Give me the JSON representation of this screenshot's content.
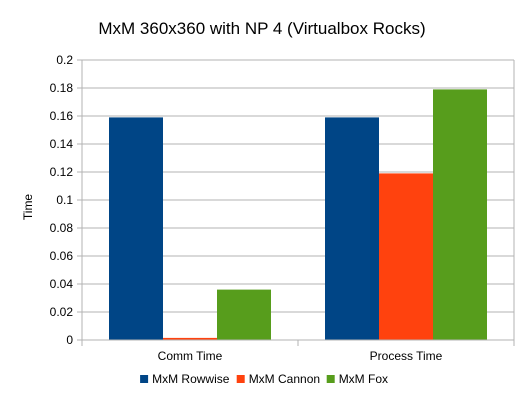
{
  "chart_data": {
    "type": "bar",
    "title": "MxM 360x360 with NP 4 (Virtualbox Rocks)",
    "xlabel": "",
    "ylabel": "Time",
    "ylim": [
      0,
      0.2
    ],
    "yticks": [
      0,
      0.02,
      0.04,
      0.06,
      0.08,
      0.1,
      0.12,
      0.14,
      0.16,
      0.18,
      0.2
    ],
    "ytick_labels": [
      "0",
      "0.02",
      "0.04",
      "0.06",
      "0.08",
      "0.1",
      "0.12",
      "0.14",
      "0.16",
      "0.18",
      "0.2"
    ],
    "categories": [
      "Comm Time",
      "Process Time"
    ],
    "series": [
      {
        "name": "MxM Rowwise",
        "color": "#004586",
        "values": [
          0.159,
          0.159
        ]
      },
      {
        "name": "MxM Cannon",
        "color": "#ff420e",
        "values": [
          0.0015,
          0.119
        ]
      },
      {
        "name": "MxM Fox",
        "color": "#579d1c",
        "values": [
          0.036,
          0.179
        ]
      }
    ],
    "grid": true,
    "legend_position": "bottom"
  }
}
